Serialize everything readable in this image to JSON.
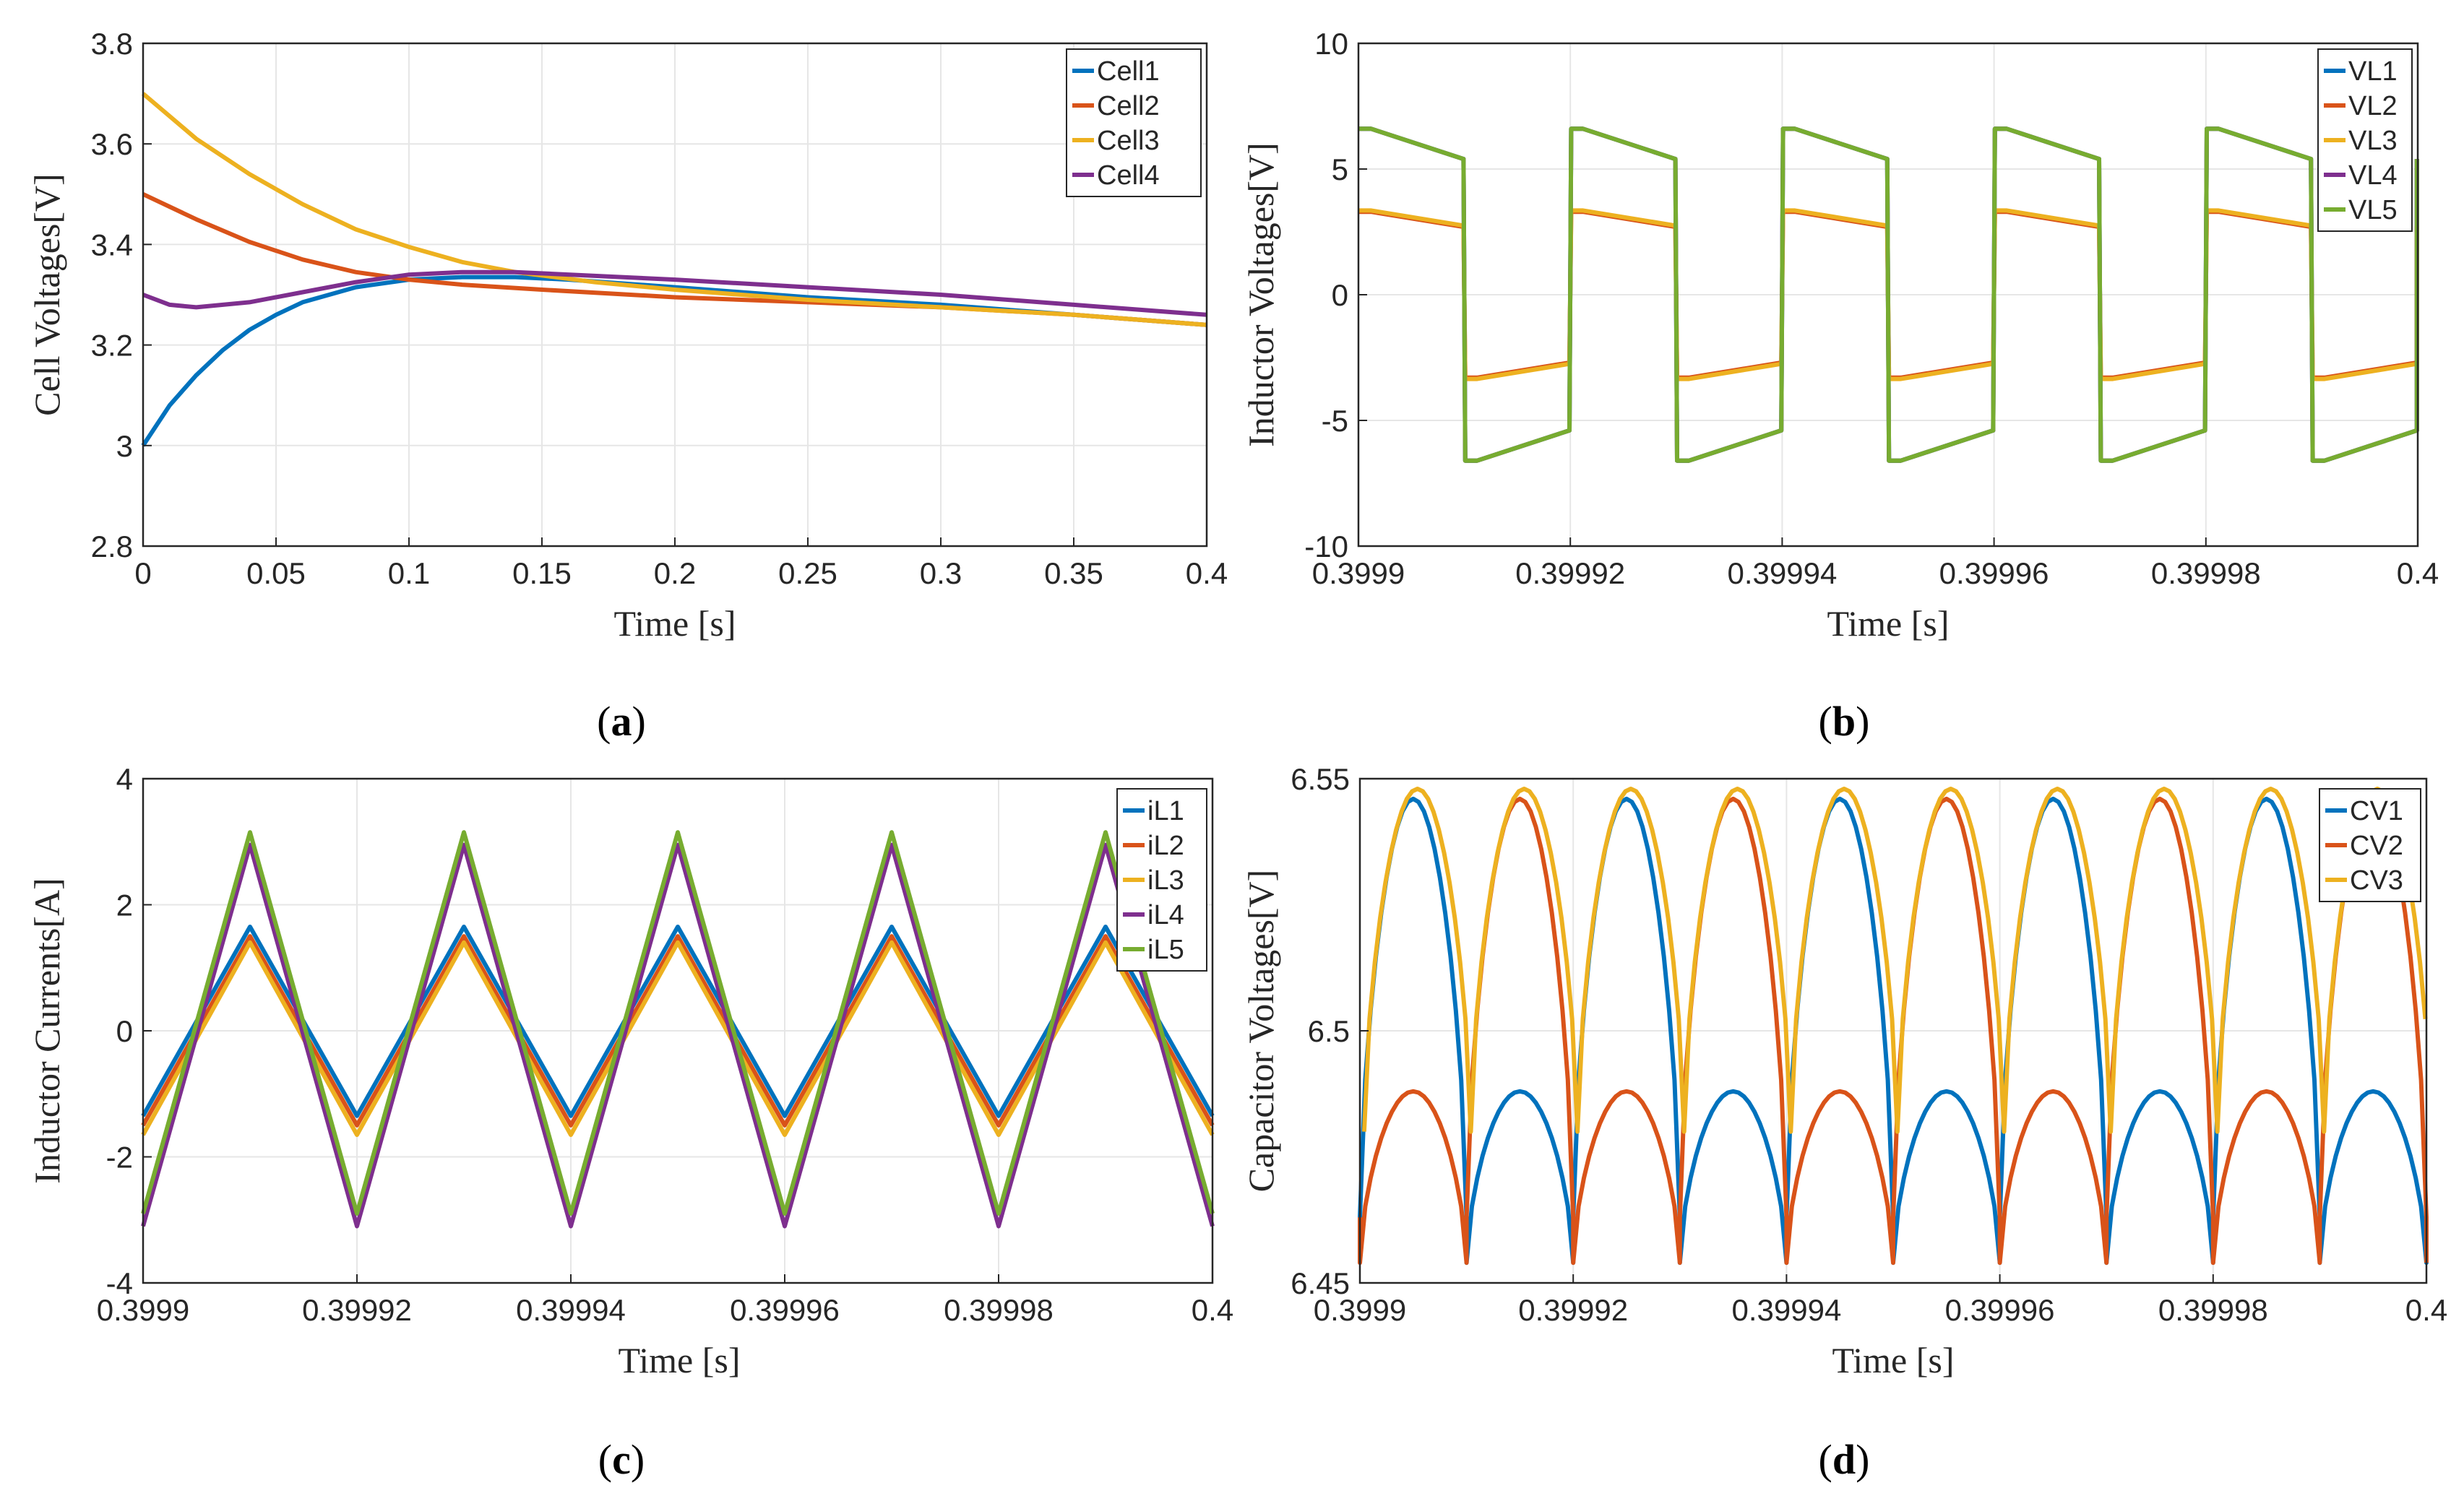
{
  "chart_data": [
    {
      "id": "a",
      "type": "line",
      "caption": "a",
      "xlabel": "Time [s]",
      "ylabel": "Cell Voltages[V]",
      "xlim": [
        0,
        0.4
      ],
      "ylim": [
        2.8,
        3.8
      ],
      "xticks": [
        0,
        0.05,
        0.1,
        0.15,
        0.2,
        0.25,
        0.3,
        0.35,
        0.4
      ],
      "xticklabels": [
        "0",
        "0.05",
        "0.1",
        "0.15",
        "0.2",
        "0.25",
        "0.3",
        "0.35",
        "0.4"
      ],
      "yticks": [
        2.8,
        3,
        3.2,
        3.4,
        3.6,
        3.8
      ],
      "yticklabels": [
        "2.8",
        "3",
        "3.2",
        "3.4",
        "3.6",
        "3.8"
      ],
      "grid": true,
      "legend": "top-right",
      "series": [
        {
          "name": "Cell1",
          "color": "#0072BD",
          "x": [
            0,
            0.01,
            0.02,
            0.03,
            0.04,
            0.05,
            0.06,
            0.08,
            0.1,
            0.12,
            0.14,
            0.16,
            0.2,
            0.25,
            0.3,
            0.35,
            0.4
          ],
          "y": [
            3.0,
            3.08,
            3.14,
            3.19,
            3.23,
            3.26,
            3.285,
            3.315,
            3.33,
            3.335,
            3.335,
            3.33,
            3.315,
            3.295,
            3.28,
            3.26,
            3.24
          ]
        },
        {
          "name": "Cell2",
          "color": "#D95319",
          "x": [
            0,
            0.02,
            0.04,
            0.06,
            0.08,
            0.1,
            0.12,
            0.15,
            0.2,
            0.25,
            0.3,
            0.35,
            0.4
          ],
          "y": [
            3.5,
            3.45,
            3.405,
            3.37,
            3.345,
            3.33,
            3.32,
            3.31,
            3.295,
            3.285,
            3.275,
            3.26,
            3.24
          ]
        },
        {
          "name": "Cell3",
          "color": "#EDB120",
          "x": [
            0,
            0.02,
            0.04,
            0.06,
            0.08,
            0.1,
            0.12,
            0.14,
            0.17,
            0.2,
            0.25,
            0.3,
            0.35,
            0.4
          ],
          "y": [
            3.7,
            3.61,
            3.54,
            3.48,
            3.43,
            3.395,
            3.365,
            3.345,
            3.325,
            3.31,
            3.29,
            3.275,
            3.26,
            3.24
          ]
        },
        {
          "name": "Cell4",
          "color": "#7E2F8E",
          "x": [
            0,
            0.01,
            0.02,
            0.04,
            0.06,
            0.08,
            0.1,
            0.12,
            0.14,
            0.2,
            0.25,
            0.3,
            0.35,
            0.4
          ],
          "y": [
            3.3,
            3.28,
            3.275,
            3.285,
            3.305,
            3.325,
            3.34,
            3.345,
            3.345,
            3.33,
            3.315,
            3.3,
            3.28,
            3.26
          ]
        }
      ]
    },
    {
      "id": "b",
      "type": "line",
      "caption": "b",
      "xlabel": "Time [s]",
      "ylabel": "Inductor Voltages[V]",
      "xlim": [
        0.3999,
        0.4
      ],
      "ylim": [
        -10,
        10
      ],
      "xticks": [
        0.3999,
        0.39992,
        0.39994,
        0.39996,
        0.39998,
        0.4
      ],
      "xticklabels": [
        "0.3999",
        "0.39992",
        "0.39994",
        "0.39996",
        "0.39998",
        "0.4"
      ],
      "yticks": [
        -10,
        -5,
        0,
        5,
        10
      ],
      "yticklabels": [
        "-10",
        "-5",
        "0",
        "5",
        "10"
      ],
      "grid": true,
      "legend": "top-right",
      "period": 2e-05,
      "series": [
        {
          "name": "VL1",
          "color": "#0072BD",
          "wave": "square",
          "high": [
            6.6,
            5.4
          ],
          "low": [
            -6.6,
            -5.4
          ]
        },
        {
          "name": "VL2",
          "color": "#D95319",
          "wave": "square",
          "high": [
            3.3,
            2.7
          ],
          "low": [
            -3.3,
            -2.7
          ]
        },
        {
          "name": "VL3",
          "color": "#EDB120",
          "wave": "square",
          "high": [
            3.35,
            2.75
          ],
          "low": [
            -3.35,
            -2.75
          ]
        },
        {
          "name": "VL4",
          "color": "#7E2F8E",
          "wave": "square",
          "high": [
            6.6,
            5.4
          ],
          "low": [
            -6.6,
            -5.4
          ]
        },
        {
          "name": "VL5",
          "color": "#77AC30",
          "wave": "square",
          "high": [
            6.6,
            5.4
          ],
          "low": [
            -6.6,
            -5.4
          ]
        }
      ]
    },
    {
      "id": "c",
      "type": "line",
      "caption": "c",
      "xlabel": "Time [s]",
      "ylabel": "Inductor Currents[A]",
      "xlim": [
        0.3999,
        0.4
      ],
      "ylim": [
        -4,
        4
      ],
      "xticks": [
        0.3999,
        0.39992,
        0.39994,
        0.39996,
        0.39998,
        0.4
      ],
      "xticklabels": [
        "0.3999",
        "0.39992",
        "0.39994",
        "0.39996",
        "0.39998",
        "0.4"
      ],
      "yticks": [
        -4,
        -2,
        0,
        2,
        4
      ],
      "yticklabels": [
        "-4",
        "-2",
        "0",
        "2",
        "4"
      ],
      "grid": true,
      "legend": "top-right",
      "period": 2e-05,
      "series": [
        {
          "name": "iL1",
          "color": "#0072BD",
          "wave": "triangle",
          "peak": 1.65,
          "trough": -1.35
        },
        {
          "name": "iL2",
          "color": "#D95319",
          "wave": "triangle",
          "peak": 1.5,
          "trough": -1.5
        },
        {
          "name": "iL3",
          "color": "#EDB120",
          "wave": "triangle",
          "peak": 1.4,
          "trough": -1.65
        },
        {
          "name": "iL4",
          "color": "#7E2F8E",
          "wave": "triangle",
          "peak": 2.95,
          "trough": -3.1
        },
        {
          "name": "iL5",
          "color": "#77AC30",
          "wave": "triangle",
          "peak": 3.15,
          "trough": -2.9
        }
      ]
    },
    {
      "id": "d",
      "type": "line",
      "caption": "d",
      "xlabel": "Time [s]",
      "ylabel": "Capacitor Voltages[V]",
      "xlim": [
        0.3999,
        0.4
      ],
      "ylim": [
        6.45,
        6.55
      ],
      "xticks": [
        0.3999,
        0.39992,
        0.39994,
        0.39996,
        0.39998,
        0.4
      ],
      "xticklabels": [
        "0.3999",
        "0.39992",
        "0.39994",
        "0.39996",
        "0.39998",
        "0.4"
      ],
      "yticks": [
        6.45,
        6.5,
        6.55
      ],
      "yticklabels": [
        "6.45",
        "6.5",
        "6.55"
      ],
      "grid": true,
      "legend": "top-right",
      "period": 2e-05,
      "series": [
        {
          "name": "CV1",
          "color": "#0072BD",
          "wave": "arches",
          "hump_high": 6.546,
          "hump_low": 6.488,
          "trough_high": 6.463,
          "trough_low": 6.454,
          "first": "high",
          "offset": 0
        },
        {
          "name": "CV2",
          "color": "#D95319",
          "wave": "arches",
          "hump_high": 6.546,
          "hump_low": 6.488,
          "trough_high": 6.463,
          "trough_low": 6.454,
          "first": "low",
          "offset": 0
        },
        {
          "name": "CV3",
          "color": "#EDB120",
          "wave": "arches",
          "hump_high": 6.548,
          "hump_low": 6.548,
          "trough_high": 6.48,
          "trough_low": 6.48,
          "first": "high",
          "offset": 4e-07
        }
      ]
    }
  ]
}
